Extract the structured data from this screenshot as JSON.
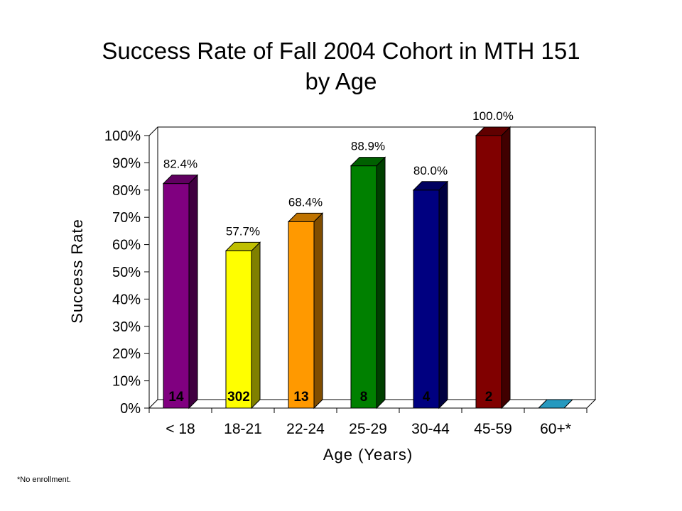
{
  "title_line1": "Success Rate of Fall 2004 Cohort in MTH 151",
  "title_line2": "by Age",
  "footnote": "*No enrollment.",
  "chart_data": {
    "type": "bar",
    "title": "Success Rate of Fall 2004 Cohort in MTH 151 by Age",
    "xlabel": "Age (Years)",
    "ylabel": "Success Rate",
    "ylim": [
      0,
      100
    ],
    "yticks": [
      "0%",
      "10%",
      "20%",
      "30%",
      "40%",
      "50%",
      "60%",
      "70%",
      "80%",
      "90%",
      "100%"
    ],
    "categories": [
      "< 18",
      "18-21",
      "22-24",
      "25-29",
      "30-44",
      "45-59",
      "60+*"
    ],
    "values": [
      82.4,
      57.7,
      68.4,
      88.9,
      80.0,
      100.0,
      0
    ],
    "value_labels": [
      "82.4%",
      "57.7%",
      "68.4%",
      "88.9%",
      "80.0%",
      "100.0%",
      ""
    ],
    "counts": [
      "14",
      "302",
      "13",
      "8",
      "4",
      "2",
      ""
    ],
    "colors": [
      "#800080",
      "#ffff00",
      "#ff9900",
      "#008000",
      "#000080",
      "#800000",
      "#33ccff"
    ],
    "grid": false,
    "legend": "none"
  }
}
